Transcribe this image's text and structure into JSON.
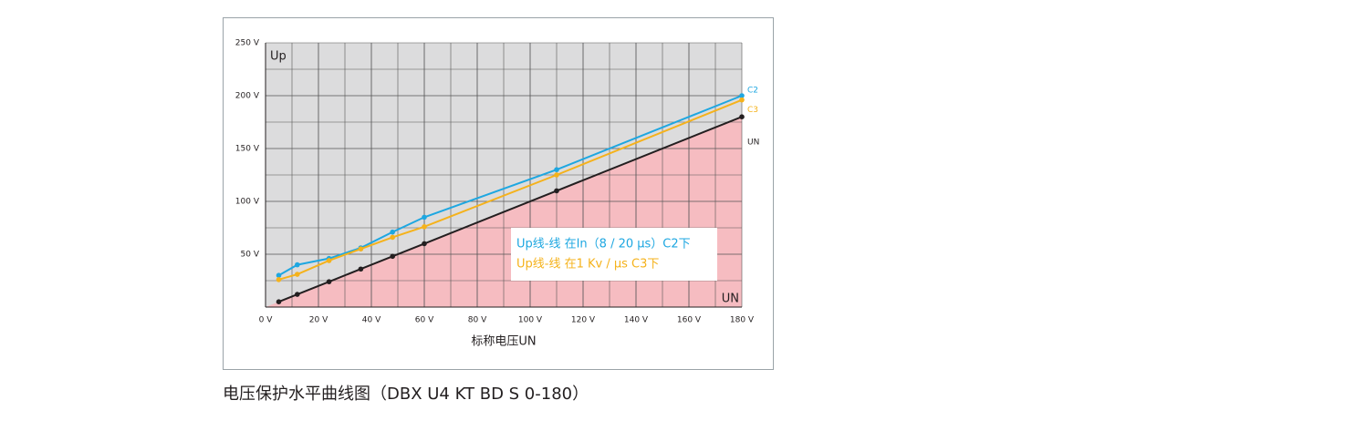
{
  "chart_data": {
    "type": "line",
    "y_axis_label": "Up",
    "x_corner_label": "UN",
    "x_axis_title": "标称电压UN",
    "caption": "电压保护水平曲线图（DBX U4 KT BD S 0-180）",
    "legend_texts": [
      "Up线-线 在In（8 / 20 μs）C2下",
      "Up线-线 在1 Kv / μs C3下"
    ],
    "x": [
      5,
      12,
      24,
      36,
      48,
      60,
      110,
      180
    ],
    "series": [
      {
        "name": "C2",
        "color": "#1ea7e1",
        "values": [
          30,
          40,
          46,
          56,
          71,
          85,
          130,
          200
        ]
      },
      {
        "name": "C3",
        "color": "#f5b21b",
        "values": [
          26,
          31,
          44,
          55,
          66,
          76,
          125,
          196
        ]
      },
      {
        "name": "UN",
        "color": "#231f20",
        "values": [
          5,
          12,
          24,
          36,
          48,
          60,
          110,
          180
        ]
      }
    ],
    "xlim": [
      0,
      180
    ],
    "ylim": [
      0,
      250
    ],
    "xticks": [
      {
        "value": 0,
        "label": "0 V"
      },
      {
        "value": 20,
        "label": "20 V"
      },
      {
        "value": 40,
        "label": "40 V"
      },
      {
        "value": 60,
        "label": "60 V"
      },
      {
        "value": 80,
        "label": "80 V"
      },
      {
        "value": 100,
        "label": "100 V"
      },
      {
        "value": 120,
        "label": "120 V"
      },
      {
        "value": 140,
        "label": "140 V"
      },
      {
        "value": 160,
        "label": "160 V"
      },
      {
        "value": 180,
        "label": "180 V"
      }
    ],
    "yticks": [
      {
        "value": 50,
        "label": "50 V"
      },
      {
        "value": 100,
        "label": "100 V"
      },
      {
        "value": 150,
        "label": "150 V"
      },
      {
        "value": 200,
        "label": "200 V"
      },
      {
        "value": 250,
        "label": "250 V"
      }
    ],
    "grid": true
  }
}
